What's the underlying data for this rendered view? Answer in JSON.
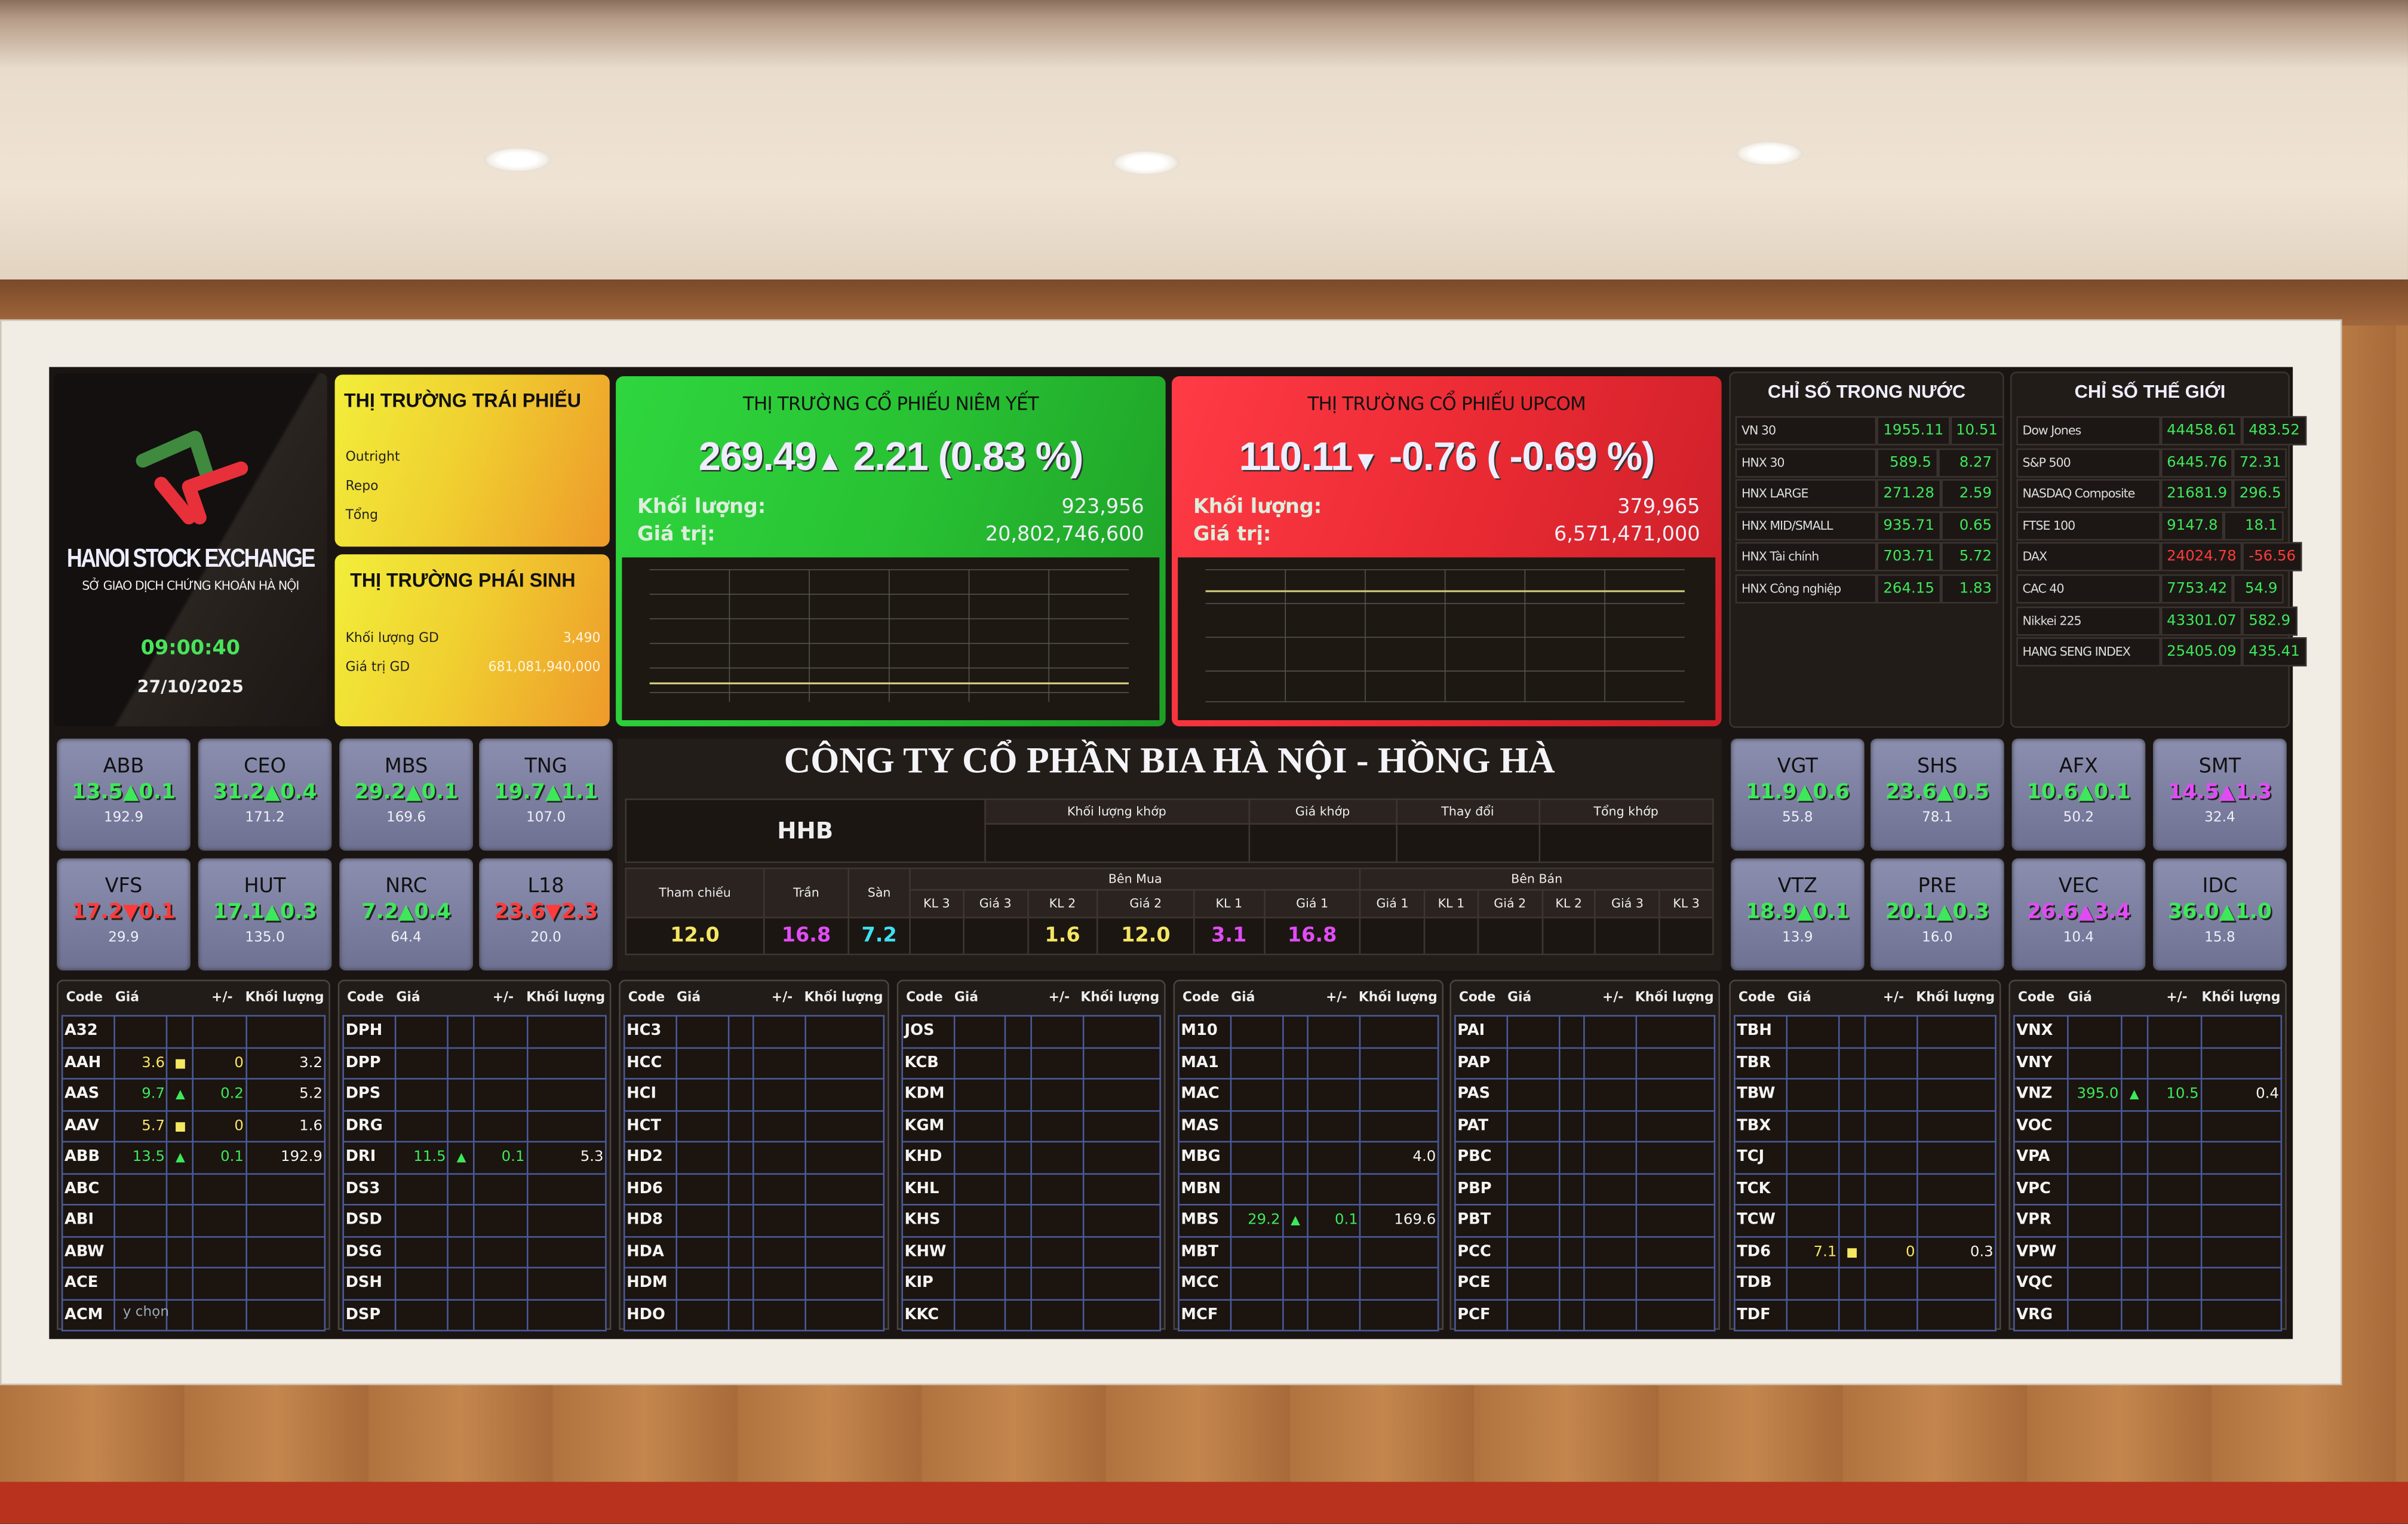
{
  "logo": {
    "brand": "HANOI STOCK EXCHANGE",
    "subtitle": "SỞ GIAO DỊCH CHỨNG KHOÁN HÀ NỘI",
    "time": "09:00:40",
    "date": "27/10/2025"
  },
  "bond": {
    "title": "THỊ TRƯỜNG TRÁI PHIẾU",
    "rows": [
      "Outright",
      "Repo",
      "Tổng"
    ]
  },
  "derivative": {
    "title": "THỊ TRƯỜNG PHÁI SINH",
    "volume_label": "Khối lượng GD",
    "volume": "3,490",
    "value_label": "Giá trị GD",
    "value": "681,081,940,000"
  },
  "listed": {
    "title": "THỊ TRƯỜNG CỔ PHIẾU NIÊM YẾT",
    "index": "269.49",
    "arrow": "▲",
    "change": "2.21",
    "percent": "(0.83  %)",
    "volume_label": "Khối lượng:",
    "volume": "923,956",
    "value_label": "Giá trị:",
    "value": "20,802,746,600",
    "color": "#2fd63e"
  },
  "upcom": {
    "title": "THỊ TRƯỜNG CỔ PHIẾU UPCOM",
    "index": "110.11",
    "arrow": "▼",
    "change": "-0.76",
    "percent": "( -0.69  %)",
    "volume_label": "Khối lượng:",
    "volume": "379,965",
    "value_label": "Giá trị:",
    "value": "6,571,471,000",
    "color": "#ff3b46"
  },
  "domestic": {
    "title": "CHỈ SỐ TRONG NƯỚC",
    "rows": [
      [
        "VN 30",
        "1955.11",
        "10.51",
        "up"
      ],
      [
        "HNX 30",
        "589.5",
        "8.27",
        "up"
      ],
      [
        "HNX LARGE",
        "271.28",
        "2.59",
        "up"
      ],
      [
        "HNX MID/SMALL",
        "935.71",
        "0.65",
        "up"
      ],
      [
        "HNX Tài chính",
        "703.71",
        "5.72",
        "up"
      ],
      [
        "HNX Công nghiệp",
        "264.15",
        "1.83",
        "up"
      ]
    ]
  },
  "world": {
    "title": "CHỈ SỐ THẾ GIỚI",
    "rows": [
      [
        "Dow Jones",
        "44458.61",
        "483.52",
        "up"
      ],
      [
        "S&P 500",
        "6445.76",
        "72.31",
        "up"
      ],
      [
        "NASDAQ Composite",
        "21681.9",
        "296.5",
        "up"
      ],
      [
        "FTSE 100",
        "9147.8",
        "18.1",
        "up"
      ],
      [
        "DAX",
        "24024.78",
        "-56.56",
        "down"
      ],
      [
        "CAC 40",
        "7753.42",
        "54.9",
        "up"
      ],
      [
        "Nikkei 225",
        "43301.07",
        "582.9",
        "up"
      ],
      [
        "HANG SENG INDEX",
        "25405.09",
        "435.41",
        "up"
      ]
    ]
  },
  "tiles_left": [
    [
      "ABB",
      "13.5",
      "▲",
      "0.1",
      "192.9",
      "up"
    ],
    [
      "CEO",
      "31.2",
      "▲",
      "0.4",
      "171.2",
      "up"
    ],
    [
      "MBS",
      "29.2",
      "▲",
      "0.1",
      "169.6",
      "up"
    ],
    [
      "TNG",
      "19.7",
      "▲",
      "1.1",
      "107.0",
      "up"
    ],
    [
      "VFS",
      "17.2",
      "▼",
      "0.1",
      "29.9",
      "down"
    ],
    [
      "HUT",
      "17.1",
      "▲",
      "0.3",
      "135.0",
      "up"
    ],
    [
      "NRC",
      "7.2",
      "▲",
      "0.4",
      "64.4",
      "up"
    ],
    [
      "L18",
      "23.6",
      "▼",
      "2.3",
      "20.0",
      "down"
    ]
  ],
  "tiles_right": [
    [
      "VGT",
      "11.9",
      "▲",
      "0.6",
      "55.8",
      "up"
    ],
    [
      "SHS",
      "23.6",
      "▲",
      "0.5",
      "78.1",
      "up"
    ],
    [
      "AFX",
      "10.6",
      "▲",
      "0.1",
      "50.2",
      "up"
    ],
    [
      "SMT",
      "14.5",
      "▲",
      "1.3",
      "32.4",
      "ceil"
    ],
    [
      "VTZ",
      "18.9",
      "▲",
      "0.1",
      "13.9",
      "up"
    ],
    [
      "PRE",
      "20.1",
      "▲",
      "0.3",
      "16.0",
      "up"
    ],
    [
      "VEC",
      "26.6",
      "▲",
      "3.4",
      "10.4",
      "ceil"
    ],
    [
      "IDC",
      "36.0",
      "▲",
      "1.0",
      "15.8",
      "up"
    ]
  ],
  "company": {
    "title": "CÔNG TY CỔ PHẦN BIA HÀ NỘI - HỒNG HÀ",
    "code": "HHB",
    "match_headers": [
      "Khối lượng khớp",
      "Giá khớp",
      "Thay đổi",
      "Tổng khớp"
    ],
    "ref_label": "Tham chiếu",
    "ceil_label": "Trần",
    "floor_label": "Sàn",
    "buy_label": "Bên Mua",
    "sell_label": "Bên Bán",
    "buy_cols": [
      "KL 3",
      "Giá 3",
      "KL 2",
      "Giá 2",
      "KL 1",
      "Giá 1"
    ],
    "sell_cols": [
      "Giá 1",
      "KL 1",
      "Giá 2",
      "KL 2",
      "Giá 3",
      "KL 3"
    ],
    "ref": "12.0",
    "ceil": "16.8",
    "floor": "7.2",
    "buy_values": [
      "",
      "",
      "1.6",
      "12.0",
      "3.1",
      "16.8"
    ],
    "buy_colors": [
      "",
      "",
      "ref",
      "ref",
      "ceil",
      "ceil"
    ],
    "sell_values": [
      "",
      "",
      "",
      "",
      "",
      ""
    ]
  },
  "table_headers": [
    "Code",
    "Giá",
    "+/-",
    "Khối lượng"
  ],
  "tables": [
    [
      [
        "A32"
      ],
      [
        "AAH",
        "3.6",
        "■",
        "0",
        "3.2",
        "ref"
      ],
      [
        "AAS",
        "9.7",
        "▲",
        "0.2",
        "5.2",
        "up"
      ],
      [
        "AAV",
        "5.7",
        "■",
        "0",
        "1.6",
        "ref"
      ],
      [
        "ABB",
        "13.5",
        "▲",
        "0.1",
        "192.9",
        "up"
      ],
      [
        "ABC"
      ],
      [
        "ABI"
      ],
      [
        "ABW"
      ],
      [
        "ACE"
      ],
      [
        "ACM"
      ]
    ],
    [
      [
        "DPH"
      ],
      [
        "DPP"
      ],
      [
        "DPS"
      ],
      [
        "DRG"
      ],
      [
        "DRI",
        "11.5",
        "▲",
        "0.1",
        "5.3",
        "up"
      ],
      [
        "DS3"
      ],
      [
        "DSD"
      ],
      [
        "DSG"
      ],
      [
        "DSH"
      ],
      [
        "DSP"
      ]
    ],
    [
      [
        "HC3"
      ],
      [
        "HCC"
      ],
      [
        "HCI"
      ],
      [
        "HCT"
      ],
      [
        "HD2"
      ],
      [
        "HD6"
      ],
      [
        "HD8"
      ],
      [
        "HDA"
      ],
      [
        "HDM"
      ],
      [
        "HDO"
      ]
    ],
    [
      [
        "JOS"
      ],
      [
        "KCB"
      ],
      [
        "KDM"
      ],
      [
        "KGM"
      ],
      [
        "KHD"
      ],
      [
        "KHL"
      ],
      [
        "KHS"
      ],
      [
        "KHW"
      ],
      [
        "KIP"
      ],
      [
        "KKC"
      ]
    ],
    [
      [
        "M10"
      ],
      [
        "MA1"
      ],
      [
        "MAC"
      ],
      [
        "MAS"
      ],
      [
        "MBG",
        "",
        "",
        "",
        "4.0",
        ""
      ],
      [
        "MBN"
      ],
      [
        "MBS",
        "29.2",
        "▲",
        "0.1",
        "169.6",
        "up"
      ],
      [
        "MBT"
      ],
      [
        "MCC"
      ],
      [
        "MCF"
      ]
    ],
    [
      [
        "PAI"
      ],
      [
        "PAP"
      ],
      [
        "PAS"
      ],
      [
        "PAT"
      ],
      [
        "PBC"
      ],
      [
        "PBP"
      ],
      [
        "PBT"
      ],
      [
        "PCC"
      ],
      [
        "PCE"
      ],
      [
        "PCF"
      ]
    ],
    [
      [
        "TBH"
      ],
      [
        "TBR"
      ],
      [
        "TBW"
      ],
      [
        "TBX"
      ],
      [
        "TCJ"
      ],
      [
        "TCK"
      ],
      [
        "TCW"
      ],
      [
        "TD6",
        "7.1",
        "■",
        "0",
        "0.3",
        "ref"
      ],
      [
        "TDB"
      ],
      [
        "TDF"
      ]
    ],
    [
      [
        "VNX"
      ],
      [
        "VNY"
      ],
      [
        "VNZ",
        "395.0",
        "▲",
        "10.5",
        "0.4",
        "up"
      ],
      [
        "VOC"
      ],
      [
        "VPA"
      ],
      [
        "VPC"
      ],
      [
        "VPR"
      ],
      [
        "VPW"
      ],
      [
        "VQC"
      ],
      [
        "VRG"
      ]
    ]
  ],
  "overlay_text": "y chọn",
  "colors": {
    "up": "#3ee85a",
    "down": "#ff3b3b",
    "ceiling": "#e04cf4",
    "reference": "#f5e663",
    "floor": "#40e0f0"
  }
}
